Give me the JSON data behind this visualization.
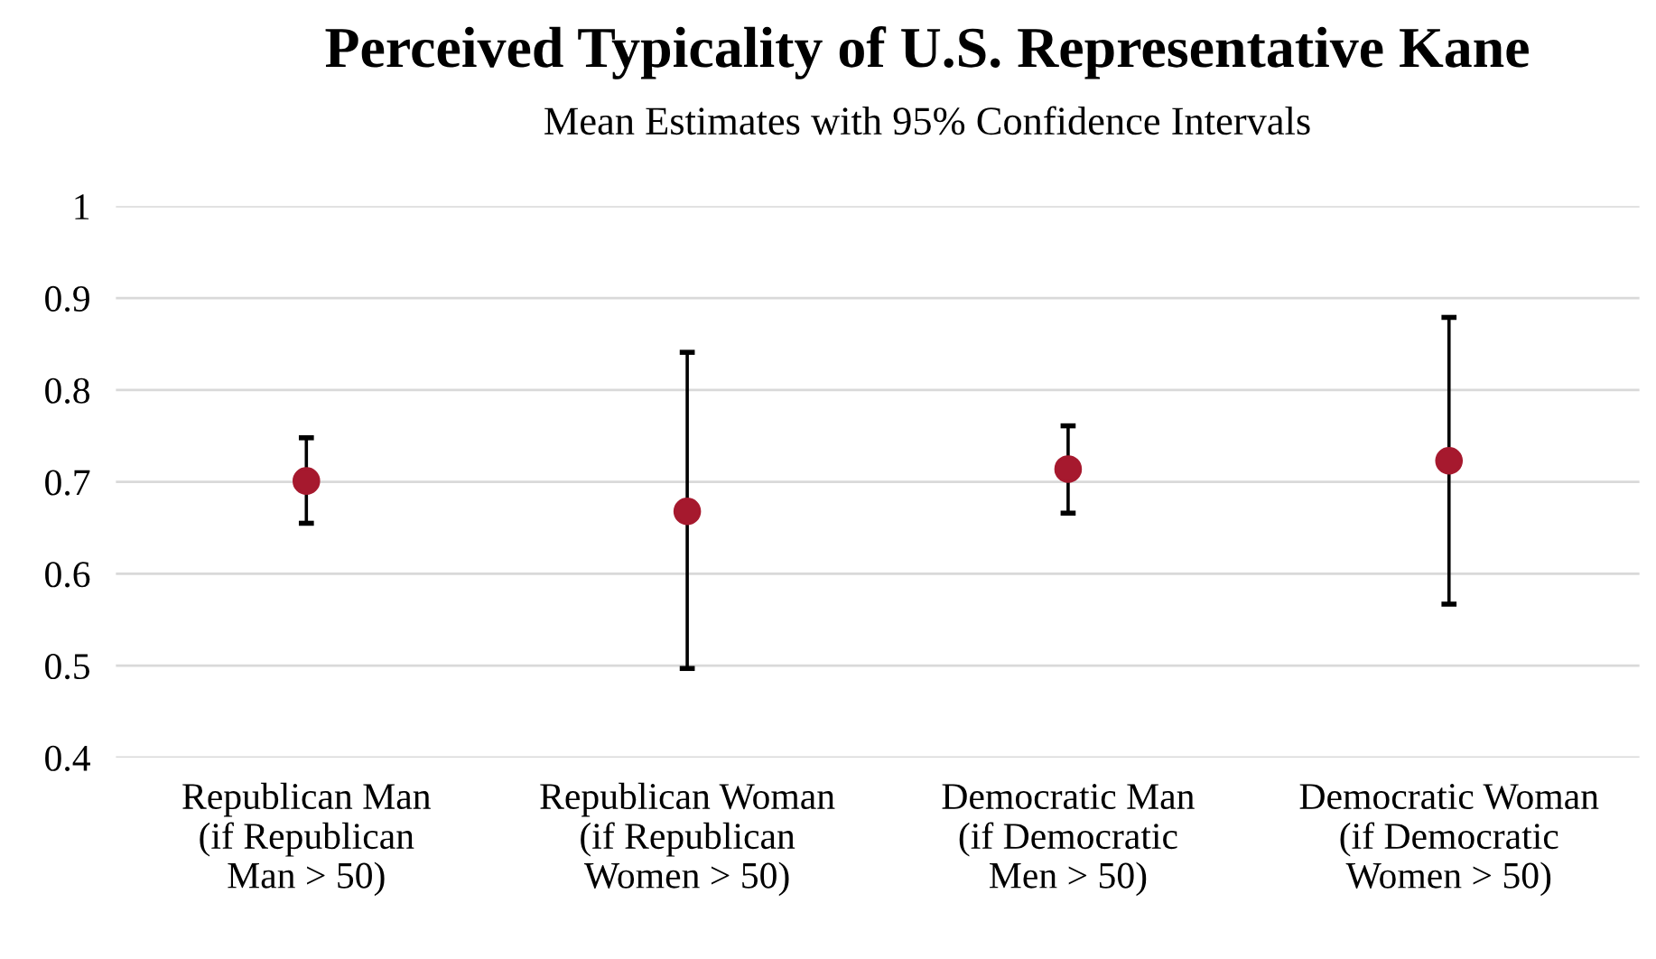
{
  "chart_data": {
    "type": "scatter",
    "title": "Perceived Typicality of U.S. Representative Kane",
    "subtitle": "Mean Estimates with 95% Confidence Intervals",
    "categories": [
      "Republican Man\n(if Republican\nMan > 50)",
      "Republican Woman\n(if Republican\nWomen > 50)",
      "Democratic Man\n(if Democratic\nMen > 50)",
      "Democratic Woman\n(if Democratic\nWomen > 50)"
    ],
    "series": [
      {
        "color": "#a6192e",
        "values": [
          0.701,
          0.668,
          0.714,
          0.723
        ],
        "errors": [
          [
            0.655,
            0.748
          ],
          [
            0.497,
            0.841
          ],
          [
            0.666,
            0.761
          ],
          [
            0.567,
            0.879
          ]
        ]
      }
    ],
    "ylim": [
      0.4,
      1
    ],
    "yticks": [
      0.4,
      0.5,
      0.6,
      0.7,
      0.8,
      0.9,
      1
    ],
    "grid": "y",
    "marker": "circle"
  }
}
